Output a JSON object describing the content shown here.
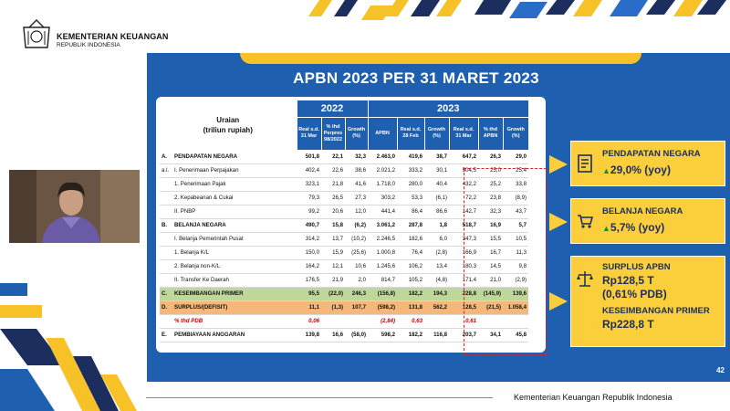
{
  "header": {
    "org_name": "KEMENTERIAN KEUANGAN",
    "org_sub": "REPUBLIK INDONESIA"
  },
  "slide": {
    "title": "APBN 2023 PER 31 MARET 2023",
    "page_number": "42"
  },
  "table": {
    "uraian_line1": "Uraian",
    "uraian_line2": "(triliun rupiah)",
    "year_2022": "2022",
    "year_2023": "2023",
    "col_2022": [
      "Real s.d. 31 Mar",
      "% thd Perpres 98/2022",
      "Growth (%)"
    ],
    "col_2023": [
      "APBN",
      "Real s.d. 28 Feb",
      "Growth (%)",
      "Real s.d. 31 Mar",
      "% thd APBN",
      "Growth (%)"
    ],
    "rows": [
      {
        "code": "A.",
        "label": "PENDAPATAN NEGARA",
        "vals": [
          "501,8",
          "22,1",
          "32,3",
          "2.463,0",
          "419,6",
          "38,7",
          "647,2",
          "26,3",
          "29,0"
        ]
      },
      {
        "code": "a.l.",
        "label": "I.   Penerimaan Perpajakan",
        "vals": [
          "402,4",
          "22,6",
          "38,6",
          "2.021,2",
          "333,2",
          "30,1",
          "504,5",
          "25,0",
          "25,4"
        ]
      },
      {
        "code": "",
        "label": "1.  Penerimaan Pajak",
        "vals": [
          "323,1",
          "21,8",
          "41,6",
          "1.718,0",
          "280,0",
          "40,4",
          "432,2",
          "25,2",
          "33,8"
        ]
      },
      {
        "code": "",
        "label": "2.  Kepabeanan & Cukai",
        "vals": [
          "79,3",
          "26,5",
          "27,3",
          "303,2",
          "53,3",
          "(6,1)",
          "72,2",
          "23,8",
          "(8,9)"
        ]
      },
      {
        "code": "",
        "label": "II.  PNBP",
        "vals": [
          "99,2",
          "20,6",
          "12,0",
          "441,4",
          "86,4",
          "86,6",
          "142,7",
          "32,3",
          "43,7"
        ]
      },
      {
        "code": "B.",
        "label": "BELANJA NEGARA",
        "vals": [
          "490,7",
          "15,8",
          "(6,2)",
          "3.061,2",
          "287,8",
          "1,8",
          "518,7",
          "16,9",
          "5,7"
        ]
      },
      {
        "code": "",
        "label": "I.   Belanja Pemerintah Pusat",
        "vals": [
          "314,2",
          "13,7",
          "(10,2)",
          "2.246,5",
          "182,6",
          "6,0",
          "347,3",
          "15,5",
          "10,5"
        ]
      },
      {
        "code": "",
        "label": "1.  Belanja K/L",
        "vals": [
          "150,0",
          "15,9",
          "(25,6)",
          "1.000,8",
          "76,4",
          "(2,8)",
          "166,9",
          "16,7",
          "11,3"
        ]
      },
      {
        "code": "",
        "label": "2.  Belanja non-K/L",
        "vals": [
          "164,2",
          "12,1",
          "10,6",
          "1.245,6",
          "106,2",
          "13,4",
          "180,3",
          "14,5",
          "9,8"
        ]
      },
      {
        "code": "",
        "label": "II.  Transfer Ke Daerah",
        "vals": [
          "176,5",
          "21,9",
          "2,0",
          "814,7",
          "105,2",
          "(4,8)",
          "171,4",
          "21,0",
          "(2,9)"
        ]
      },
      {
        "code": "C.",
        "label": "KESEIMBANGAN PRIMER",
        "vals": [
          "95,5",
          "(22,0)",
          "246,3",
          "(156,8)",
          "182,2",
          "194,3",
          "228,8",
          "(145,9)",
          "139,6"
        ]
      },
      {
        "code": "D.",
        "label": "SURPLUS/(DEFISIT)",
        "vals": [
          "11,1",
          "(1,3)",
          "107,7",
          "(598,2)",
          "131,8",
          "562,2",
          "128,5",
          "(21,5)",
          "1.058,4"
        ]
      },
      {
        "code": "",
        "label": "% thd PDB",
        "vals": [
          "0,06",
          "",
          "",
          "(2,84)",
          "0,63",
          "",
          "0,61",
          "",
          ""
        ]
      },
      {
        "code": "E.",
        "label": "PEMBIAYAAN ANGGARAN",
        "vals": [
          "139,8",
          "16,6",
          "(58,0)",
          "598,2",
          "182,2",
          "116,8",
          "203,7",
          "34,1",
          "45,8"
        ]
      }
    ]
  },
  "cards": {
    "pendapatan": {
      "title": "PENDAPATAN NEGARA",
      "value": "29,0% (yoy)"
    },
    "belanja": {
      "title": "BELANJA NEGARA",
      "value": "5,7% (yoy)"
    },
    "surplus": {
      "title": "SURPLUS APBN",
      "value1": "Rp128,5 T",
      "value2": "(0,61% PDB)",
      "title2": "KESEIMBANGAN PRIMER",
      "value3": "Rp228,8 T"
    }
  },
  "footer": {
    "text": "Kementerian Keuangan Republik Indonesia"
  },
  "colors": {
    "slide_blue": "#1f5fb0",
    "accent_yellow": "#fbce3c",
    "navy": "#1b2e5e",
    "green_row": "#bfd89a",
    "orange_row": "#f6b77a"
  }
}
